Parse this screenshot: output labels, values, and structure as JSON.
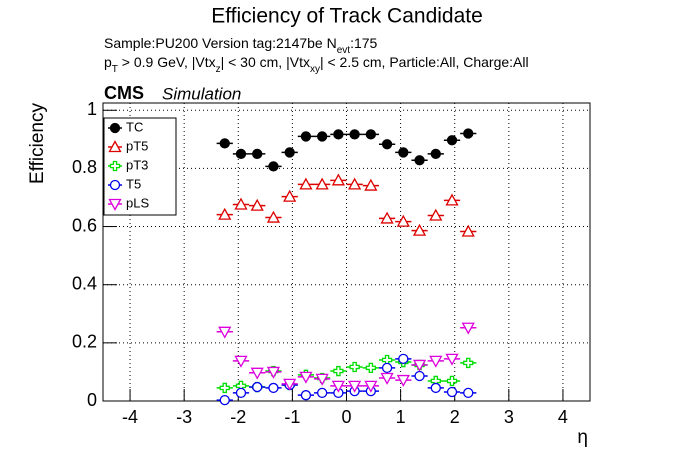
{
  "chart_data": {
    "type": "errorbar",
    "title": "Efficiency of Track Candidate",
    "subtitle_1": [
      "Sample:PU200   Version tag:2147be  N",
      "evt",
      ":175"
    ],
    "subtitle_2": [
      "p",
      "T",
      " > 0.9 GeV, |Vtx",
      "z",
      "| < 30 cm, |Vtx",
      "xy",
      "| < 2.5 cm, Particle:All, Charge:All"
    ],
    "experiment": "CMS",
    "experiment_note": "Simulation",
    "y_label": "Efficiency",
    "x_label": "η",
    "x": [
      -2.25,
      -1.95,
      -1.65,
      -1.35,
      -1.05,
      -0.75,
      -0.45,
      -0.15,
      0.15,
      0.45,
      0.75,
      1.05,
      1.35,
      1.65,
      1.95,
      2.25
    ],
    "xerr": 0.15,
    "xlim": [
      -4.5,
      4.5
    ],
    "xticks": [
      -4,
      -3,
      -2,
      -1,
      0,
      1,
      2,
      3,
      4
    ],
    "ylim": [
      0,
      1.025
    ],
    "yticks": [
      0,
      0.2,
      0.4,
      0.6,
      0.8,
      1
    ],
    "grid": true,
    "legend": "top-left",
    "series": [
      {
        "name": "TC",
        "color": "#000000",
        "marker": "circle-filled",
        "values": [
          0.886,
          0.85,
          0.85,
          0.807,
          0.855,
          0.91,
          0.91,
          0.917,
          0.917,
          0.917,
          0.883,
          0.855,
          0.828,
          0.85,
          0.897,
          0.92
        ]
      },
      {
        "name": "pT5",
        "color": "#dd0000",
        "marker": "triangle-up",
        "values": [
          0.641,
          0.676,
          0.672,
          0.631,
          0.703,
          0.745,
          0.745,
          0.759,
          0.745,
          0.741,
          0.628,
          0.617,
          0.586,
          0.638,
          0.69,
          0.583
        ]
      },
      {
        "name": "pT3",
        "color": "#00dd00",
        "marker": "cross",
        "values": [
          0.045,
          0.052,
          0.048,
          0.103,
          0.055,
          0.09,
          0.079,
          0.103,
          0.117,
          0.114,
          0.141,
          0.134,
          0.124,
          0.069,
          0.069,
          0.131
        ]
      },
      {
        "name": "T5",
        "color": "#0000ee",
        "marker": "circle",
        "values": [
          0.003,
          0.028,
          0.048,
          0.045,
          0.055,
          0.02,
          0.028,
          0.028,
          0.034,
          0.034,
          0.114,
          0.145,
          0.086,
          0.045,
          0.031,
          0.028
        ]
      },
      {
        "name": "pLS",
        "color": "#dd00dd",
        "marker": "triangle-down",
        "values": [
          0.238,
          0.138,
          0.097,
          0.1,
          0.059,
          0.083,
          0.076,
          0.052,
          0.052,
          0.052,
          0.079,
          0.072,
          0.124,
          0.138,
          0.145,
          0.252
        ]
      }
    ]
  }
}
